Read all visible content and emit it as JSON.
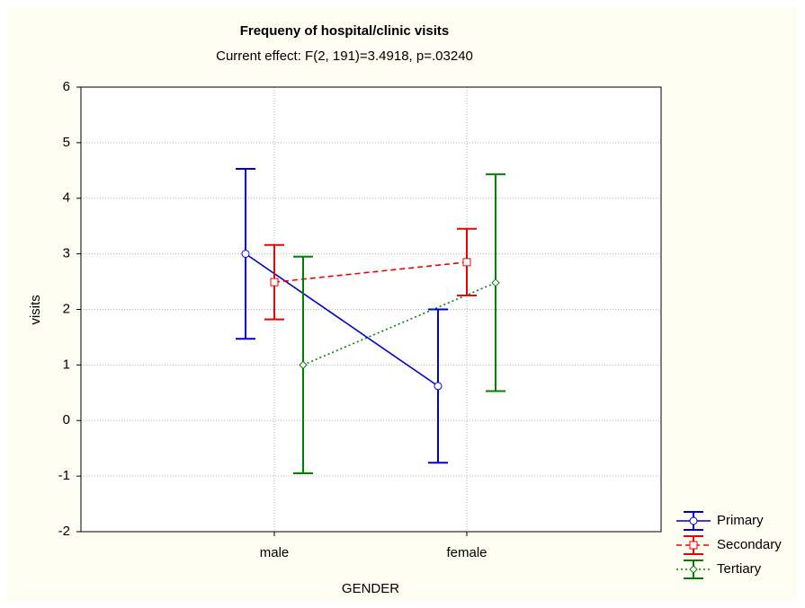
{
  "chart_data": {
    "type": "errorbar-line",
    "title": "Frequeny of hospital/clinic visits",
    "subtitle": "Current effect: F(2, 191)=3.4918, p=.03240",
    "x_label": "GENDER",
    "y_label": "visits",
    "categories": [
      "male",
      "female"
    ],
    "ylim": [
      -2,
      6
    ],
    "yticks": [
      -2,
      -1,
      0,
      1,
      2,
      3,
      4,
      5,
      6
    ],
    "grid": true,
    "legend": "bottom-right",
    "series": [
      {
        "name": "Primary",
        "color": "#0000cc",
        "dash": "solid",
        "marker": "circle",
        "values": [
          3.0,
          0.62
        ],
        "errors": [
          1.53,
          1.38
        ]
      },
      {
        "name": "Secondary",
        "color": "#ee0000",
        "dash": "dashed",
        "marker": "square",
        "values": [
          2.49,
          2.85
        ],
        "errors": [
          0.67,
          0.6
        ]
      },
      {
        "name": "Tertiary",
        "color": "#008000",
        "dash": "dotted",
        "marker": "diamond",
        "values": [
          1.0,
          2.48
        ],
        "errors": [
          1.95,
          1.95
        ]
      }
    ]
  }
}
